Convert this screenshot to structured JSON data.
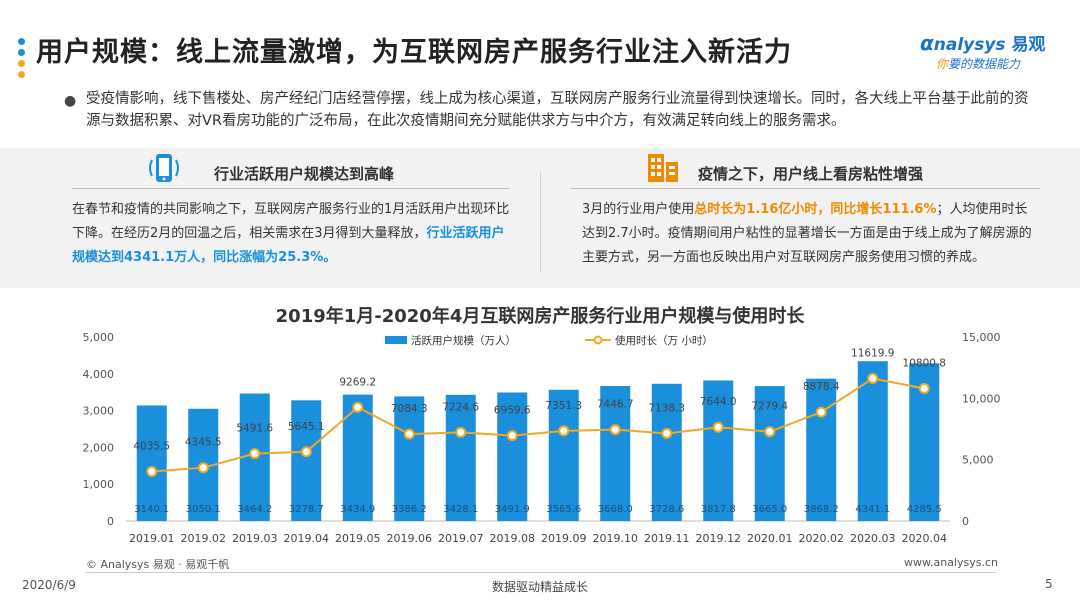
{
  "page_title": "用户规模：线上流量激增，为互联网房产服务行业注入新活力",
  "logo": {
    "brand": "nalysys",
    "brand_cn": "易观",
    "tagline_lead": "你",
    "tagline": "要的数据能力"
  },
  "intro": "受疫情影响，线下售楼处、房产经纪门店经营停摆，线上成为核心渠道，互联网房产服务行业流量得到快速增长。同时，各大线上平台基于此前的资源与数据积累、对VR看房功能的广泛布局，在此次疫情期间充分赋能供求方与中介方，有效满足转向线上的服务需求。",
  "left_panel": {
    "heading": "行业活跃用户规模达到高峰",
    "text_before": "在春节和疫情的共同影响之下，互联网房产服务行业的1月活跃用户出现环比下降。在经历2月的回温之后，相关需求在3月得到大量释放，",
    "highlight": "行业活跃用户规模达到4341.1万人，同比涨幅为25.3%。"
  },
  "right_panel": {
    "heading": "疫情之下，用户线上看房粘性增强",
    "text_before": "3月的行业用户使用",
    "highlight": "总时长为1.16亿小时，同比增长111.6%",
    "text_after": "；人均使用时长达到2.7小时。疫情期间用户粘性的显著增长一方面是由于线上成为了解房源的主要方式，另一方面也反映出用户对互联网房产服务使用习惯的养成。"
  },
  "colors": {
    "bar": "#1a8fdc",
    "line": "#f5a623",
    "accent_orange": "#f08a00",
    "accent_blue": "#1a8fdc"
  },
  "chart_data": {
    "type": "bar+line",
    "title": "2019年1月-2020年4月互联网房产服务行业用户规模与使用时长",
    "categories": [
      "2019.01",
      "2019.02",
      "2019.03",
      "2019.04",
      "2019.05",
      "2019.06",
      "2019.07",
      "2019.08",
      "2019.09",
      "2019.10",
      "2019.11",
      "2019.12",
      "2020.01",
      "2020.02",
      "2020.03",
      "2020.04"
    ],
    "series": [
      {
        "name": "活跃用户规模（万人）",
        "type": "bar",
        "axis": "left",
        "values": [
          3140.1,
          3050.1,
          3464.2,
          3278.7,
          3434.9,
          3386.2,
          3428.1,
          3491.9,
          3565.6,
          3668.0,
          3728.6,
          3817.8,
          3665.0,
          3868.2,
          4341.1,
          4285.5
        ],
        "labels": [
          "3140.1",
          "3050.1",
          "3464.2",
          "3278.7",
          "3434.9",
          "3386.2",
          "3428.1",
          "3491.9",
          "3565.6",
          "3668.0",
          "3728.6",
          "3817.8",
          "3665.0",
          "3868.2",
          "4341.1",
          "4285.5"
        ]
      },
      {
        "name": "使用时长（万 小时）",
        "type": "line",
        "axis": "right",
        "values": [
          4035.5,
          4345.5,
          5491.6,
          5645.1,
          9269.2,
          7084.3,
          7224.6,
          6959.6,
          7351.3,
          7446.7,
          7138.3,
          7644.0,
          7279.4,
          8878.4,
          11619.9,
          10800.8
        ],
        "labels": [
          "4035.5",
          "4345.5",
          "5491.6",
          "5645.1",
          "9269.2",
          "7084.3",
          "7224.6",
          "6959.6",
          "7351.3",
          "7446.7",
          "7138.3",
          "7644.0",
          "7279.4",
          "8878.4",
          "11619.9",
          "10800.8"
        ]
      }
    ],
    "left_axis": {
      "ylim": [
        0,
        5000
      ],
      "ticks": [
        "0",
        "1,000",
        "2,000",
        "3,000",
        "4,000",
        "5,000"
      ]
    },
    "right_axis": {
      "ylim": [
        0,
        15000
      ],
      "ticks": [
        "0",
        "5,000",
        "10,000",
        "15,000"
      ]
    },
    "legend_position": "top-center",
    "grid": false
  },
  "footer": {
    "copyright": "© Analysys 易观 · 易观千帆",
    "url": "www.analysys.cn",
    "date": "2020/6/9",
    "slogan": "数据驱动精益成长",
    "page": "5"
  }
}
